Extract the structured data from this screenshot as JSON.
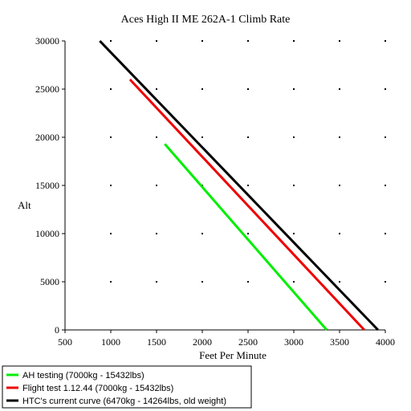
{
  "chart_data": {
    "type": "line",
    "title": "Aces High II ME 262A-1 Climb Rate",
    "xlabel": "Feet Per Minute",
    "ylabel": "Alt",
    "xlim": [
      500,
      4000
    ],
    "ylim": [
      0,
      30000
    ],
    "x_ticks": [
      500,
      1000,
      1500,
      2000,
      2500,
      3000,
      3500,
      4000
    ],
    "y_ticks": [
      0,
      5000,
      10000,
      15000,
      20000,
      25000,
      30000
    ],
    "grid": "dots",
    "legend_position": "bottom-left",
    "series": [
      {
        "name": "AH testing (7000kg - 15432lbs)",
        "color": "#00ee00",
        "points": [
          [
            1590,
            19300
          ],
          [
            3360,
            0
          ]
        ]
      },
      {
        "name": "Flight test 1.12.44 (7000kg - 15432lbs)",
        "color": "#ee0000",
        "points": [
          [
            1210,
            26000
          ],
          [
            3770,
            0
          ]
        ]
      },
      {
        "name": "HTC's current curve (6470kg - 14264lbs, old weight)",
        "color": "#000000",
        "points": [
          [
            880,
            30000
          ],
          [
            3920,
            0
          ]
        ]
      }
    ]
  }
}
